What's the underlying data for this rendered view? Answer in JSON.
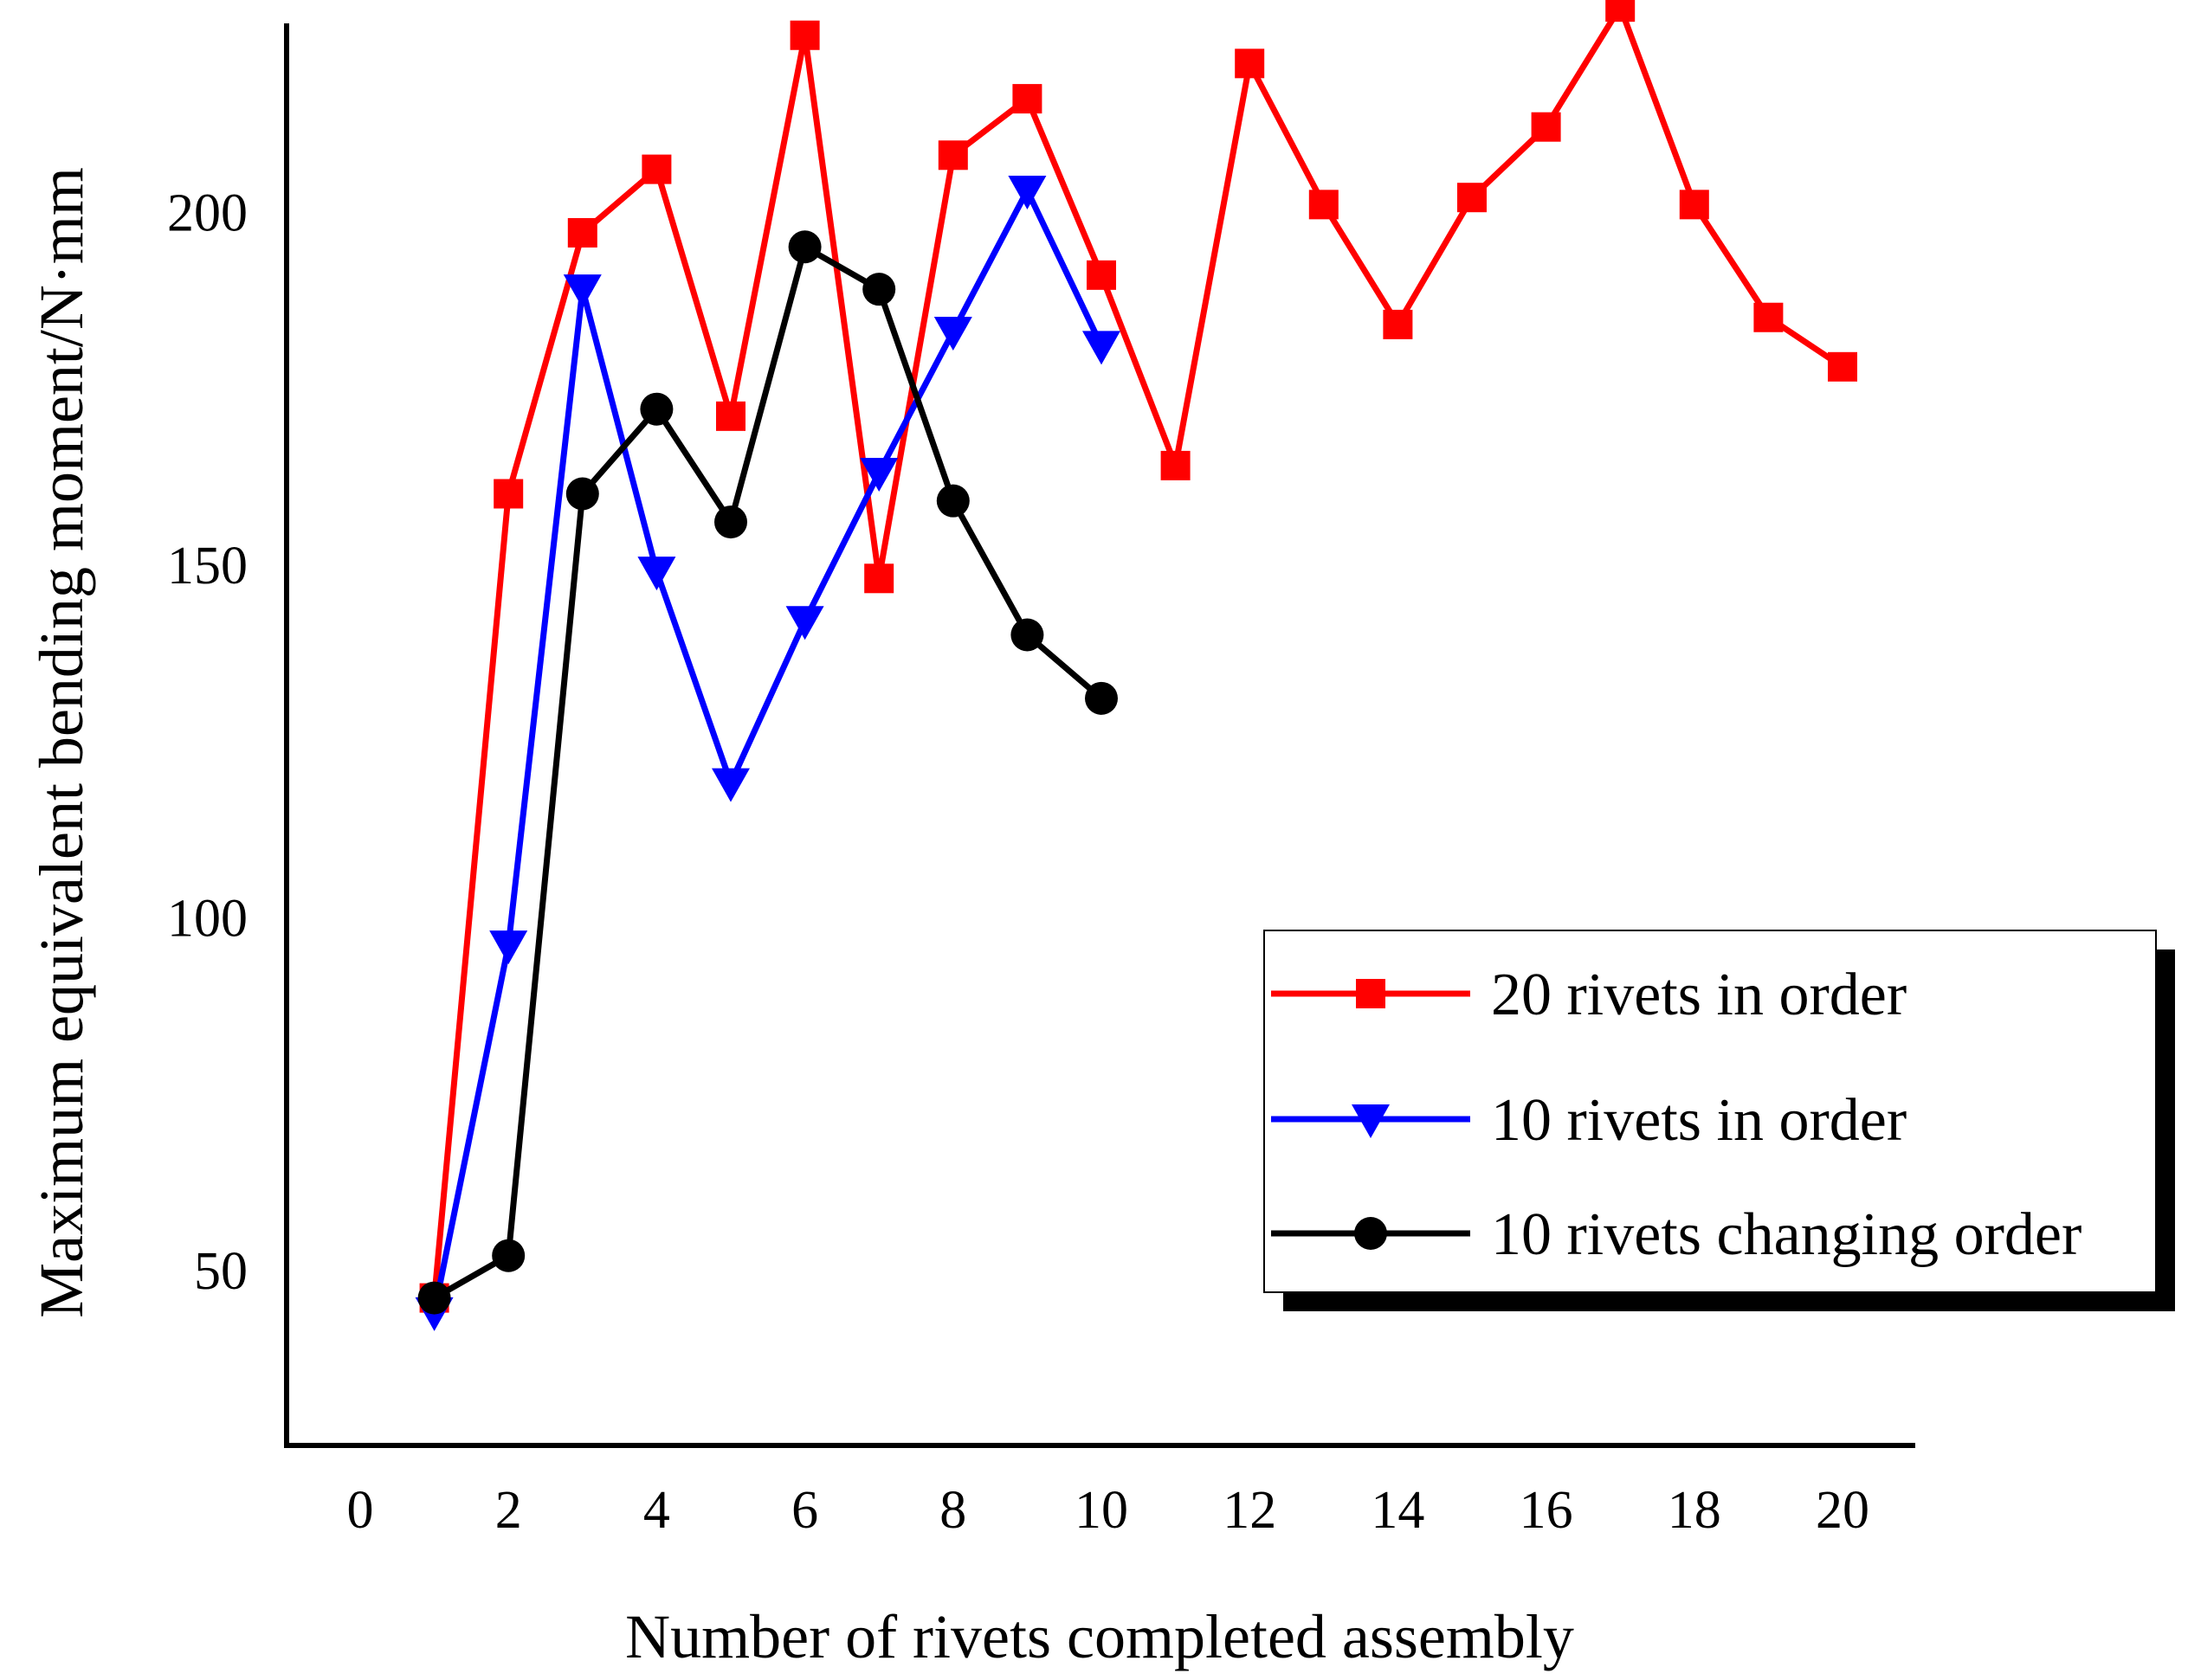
{
  "chart_data": {
    "type": "line",
    "title": "",
    "xlabel": "Number of rivets completed assembly",
    "ylabel": "Maximum equivalent bending moment/N·mm",
    "xlim": [
      -1,
      21
    ],
    "ylim": [
      27,
      229
    ],
    "xticks": [
      0,
      2,
      4,
      6,
      8,
      10,
      12,
      14,
      16,
      18,
      20
    ],
    "yticks": [
      50,
      100,
      150,
      200
    ],
    "grid": false,
    "legend_position": "lower-right",
    "series": [
      {
        "name": "20 rivets in order",
        "color": "#ff0000",
        "marker": "square",
        "x": [
          1,
          2,
          3,
          4,
          5,
          6,
          7,
          8,
          9,
          10,
          11,
          12,
          13,
          14,
          15,
          16,
          17,
          18,
          19,
          20
        ],
        "values": [
          46,
          160,
          197,
          206,
          171,
          225,
          148,
          208,
          216,
          191,
          164,
          221,
          201,
          184,
          202,
          212,
          229,
          201,
          185,
          178
        ]
      },
      {
        "name": "10 rivets in order",
        "color": "#0000ff",
        "marker": "triangle-down",
        "x": [
          1,
          2,
          3,
          4,
          5,
          6,
          7,
          8,
          9,
          10
        ],
        "values": [
          44,
          96,
          189,
          149,
          119,
          142,
          163,
          183,
          203,
          181
        ]
      },
      {
        "name": "10 rivets changing order",
        "color": "#000000",
        "marker": "circle",
        "x": [
          1,
          2,
          3,
          4,
          5,
          6,
          7,
          8,
          9,
          10
        ],
        "values": [
          46,
          52,
          160,
          172,
          156,
          195,
          189,
          159,
          140,
          131
        ]
      }
    ]
  }
}
